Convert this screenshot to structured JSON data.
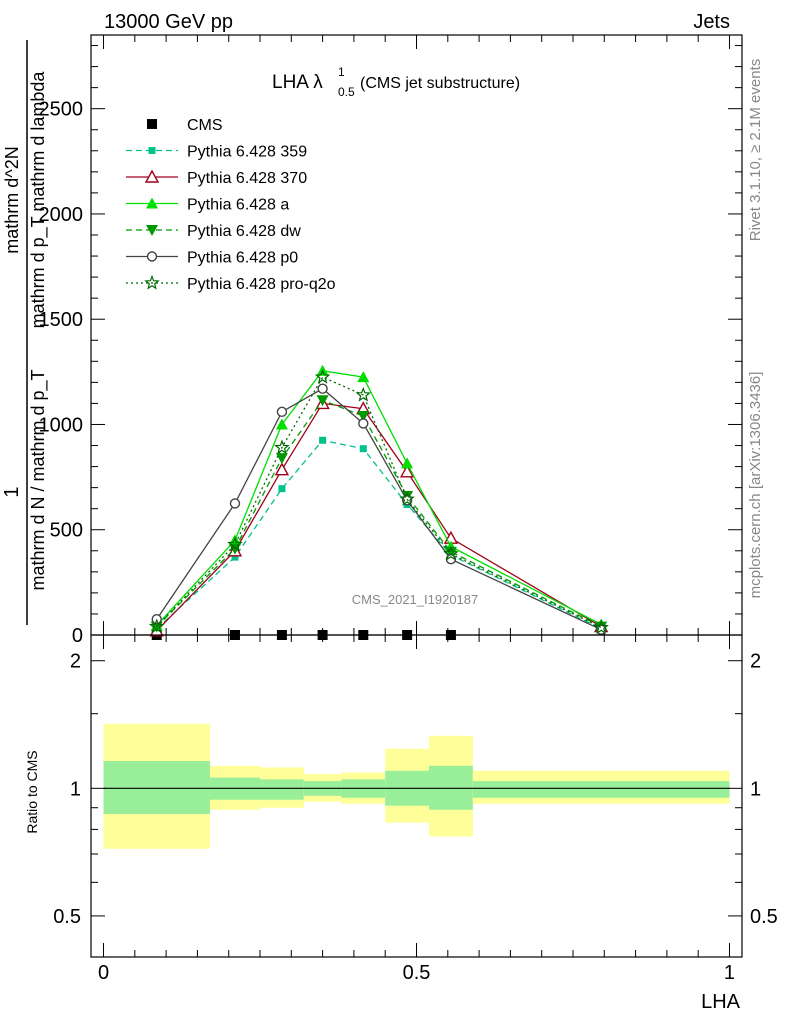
{
  "header": {
    "left": "13000 GeV pp",
    "right": "Jets"
  },
  "plot_title": {
    "main": "LHA λ",
    "sup": "1",
    "sub": "0.5",
    "rest": " (CMS jet substructure)"
  },
  "side_labels": {
    "rivet": "Rivet 3.1.10, ≥ 2.1M events",
    "site": "mcplots.cern.ch [arXiv:1306.3436]"
  },
  "watermark": "CMS_2021_I1920187",
  "ylabel_main": {
    "num": "1",
    "den": "mathrm d N / mathrm d p_T",
    "frac_num": "mathrm d^2N",
    "frac_den": "mathrm d p_T mathrm d lambda"
  },
  "ylabel_ratio": "Ratio to CMS",
  "xlabel": "LHA",
  "colors": {
    "p359": "#00c28a",
    "p370": "#a0001c",
    "pa": "#00e000",
    "pdw": "#009a00",
    "pp0": "#444444",
    "pq2o": "#006a00",
    "band_inner": "#99ee99",
    "band_outer": "#ffff99"
  },
  "chart_data": [
    {
      "type": "line",
      "xlim": [
        -0.02,
        1.02
      ],
      "ylim": [
        0,
        2850
      ],
      "yticks": [
        0,
        500,
        1000,
        1500,
        2000,
        2500
      ],
      "ytick_labels": [
        "0",
        "500",
        "1000",
        "1500",
        "2000",
        "2500"
      ],
      "x": [
        0.085,
        0.21,
        0.285,
        0.35,
        0.415,
        0.485,
        0.555,
        0.795
      ],
      "legend_position": "top-left",
      "series": [
        {
          "name": "CMS",
          "key": "cms",
          "marker": "square",
          "values": [
            0,
            0,
            0,
            0,
            0,
            0,
            0,
            0
          ]
        },
        {
          "name": "Pythia 6.428 359",
          "key": "p359",
          "marker": "square-small",
          "dash": "6,4",
          "values": [
            30,
            370,
            695,
            925,
            885,
            620,
            380,
            30
          ]
        },
        {
          "name": "Pythia 6.428 370",
          "key": "p370",
          "marker": "triangle-open",
          "dash": "",
          "values": [
            20,
            400,
            785,
            1100,
            1075,
            775,
            460,
            40
          ]
        },
        {
          "name": "Pythia 6.428 a",
          "key": "pa",
          "marker": "triangle-filled",
          "dash": "",
          "values": [
            45,
            450,
            1000,
            1255,
            1225,
            815,
            420,
            50
          ]
        },
        {
          "name": "Pythia 6.428 dw",
          "key": "pdw",
          "marker": "triangle-down",
          "dash": "6,4",
          "values": [
            40,
            410,
            840,
            1115,
            1040,
            660,
            395,
            40
          ]
        },
        {
          "name": "Pythia 6.428 p0",
          "key": "pp0",
          "marker": "circle-open",
          "dash": "",
          "values": [
            75,
            625,
            1060,
            1170,
            1005,
            640,
            360,
            25
          ]
        },
        {
          "name": "Pythia 6.428 pro-q2o",
          "key": "pq2o",
          "marker": "star",
          "dash": "2,3",
          "values": [
            40,
            430,
            890,
            1225,
            1140,
            645,
            385,
            35
          ]
        }
      ]
    },
    {
      "type": "area",
      "xlim": [
        -0.02,
        1.02
      ],
      "ylim": [
        0.4,
        2.3
      ],
      "yscale": "log",
      "yticks": [
        0.5,
        1,
        2
      ],
      "ytick_labels": [
        "0.5",
        "1",
        "2"
      ],
      "xticks": [
        0,
        0.5,
        1
      ],
      "xtick_labels": [
        "0",
        "0.5",
        "1"
      ],
      "bins": [
        {
          "x0": 0.0,
          "x1": 0.17,
          "inner": [
            0.87,
            1.16
          ],
          "outer": [
            0.72,
            1.42
          ]
        },
        {
          "x0": 0.17,
          "x1": 0.25,
          "inner": [
            0.94,
            1.06
          ],
          "outer": [
            0.89,
            1.13
          ]
        },
        {
          "x0": 0.25,
          "x1": 0.32,
          "inner": [
            0.94,
            1.05
          ],
          "outer": [
            0.9,
            1.12
          ]
        },
        {
          "x0": 0.32,
          "x1": 0.38,
          "inner": [
            0.96,
            1.04
          ],
          "outer": [
            0.93,
            1.08
          ]
        },
        {
          "x0": 0.38,
          "x1": 0.45,
          "inner": [
            0.95,
            1.05
          ],
          "outer": [
            0.92,
            1.09
          ]
        },
        {
          "x0": 0.45,
          "x1": 0.52,
          "inner": [
            0.91,
            1.1
          ],
          "outer": [
            0.83,
            1.24
          ]
        },
        {
          "x0": 0.52,
          "x1": 0.59,
          "inner": [
            0.89,
            1.13
          ],
          "outer": [
            0.77,
            1.33
          ]
        },
        {
          "x0": 0.59,
          "x1": 1.0,
          "inner": [
            0.95,
            1.04
          ],
          "outer": [
            0.92,
            1.1
          ]
        }
      ]
    }
  ]
}
